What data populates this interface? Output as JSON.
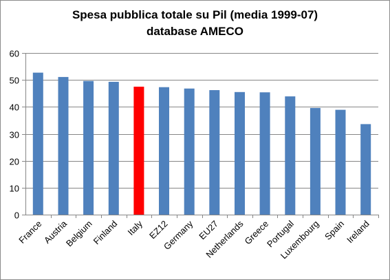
{
  "chart_data": {
    "type": "bar",
    "title": [
      "Spesa pubblica totale su Pil (media 1999-07)",
      "database AMECO"
    ],
    "categories": [
      "France",
      "Austria",
      "Belgium",
      "Finland",
      "Italy",
      "EZ12",
      "Germany",
      "EU27",
      "Netherlands",
      "Greece",
      "Portugal",
      "Luxembourg",
      "Spain",
      "Ireland"
    ],
    "values": [
      52.7,
      51.1,
      49.6,
      49.3,
      47.5,
      47.3,
      46.8,
      46.2,
      45.5,
      45.4,
      43.9,
      39.6,
      38.9,
      33.6
    ],
    "colors": {
      "default": "#4f81bd",
      "highlight": "#ff0000",
      "grid": "#868686",
      "axis": "#868686"
    },
    "highlight_category": "Italy",
    "ylim": [
      0,
      60
    ],
    "yticks": [
      "0",
      "10",
      "20",
      "30",
      "40",
      "50",
      "60"
    ],
    "xlabel": "",
    "ylabel": "",
    "grid": true
  }
}
